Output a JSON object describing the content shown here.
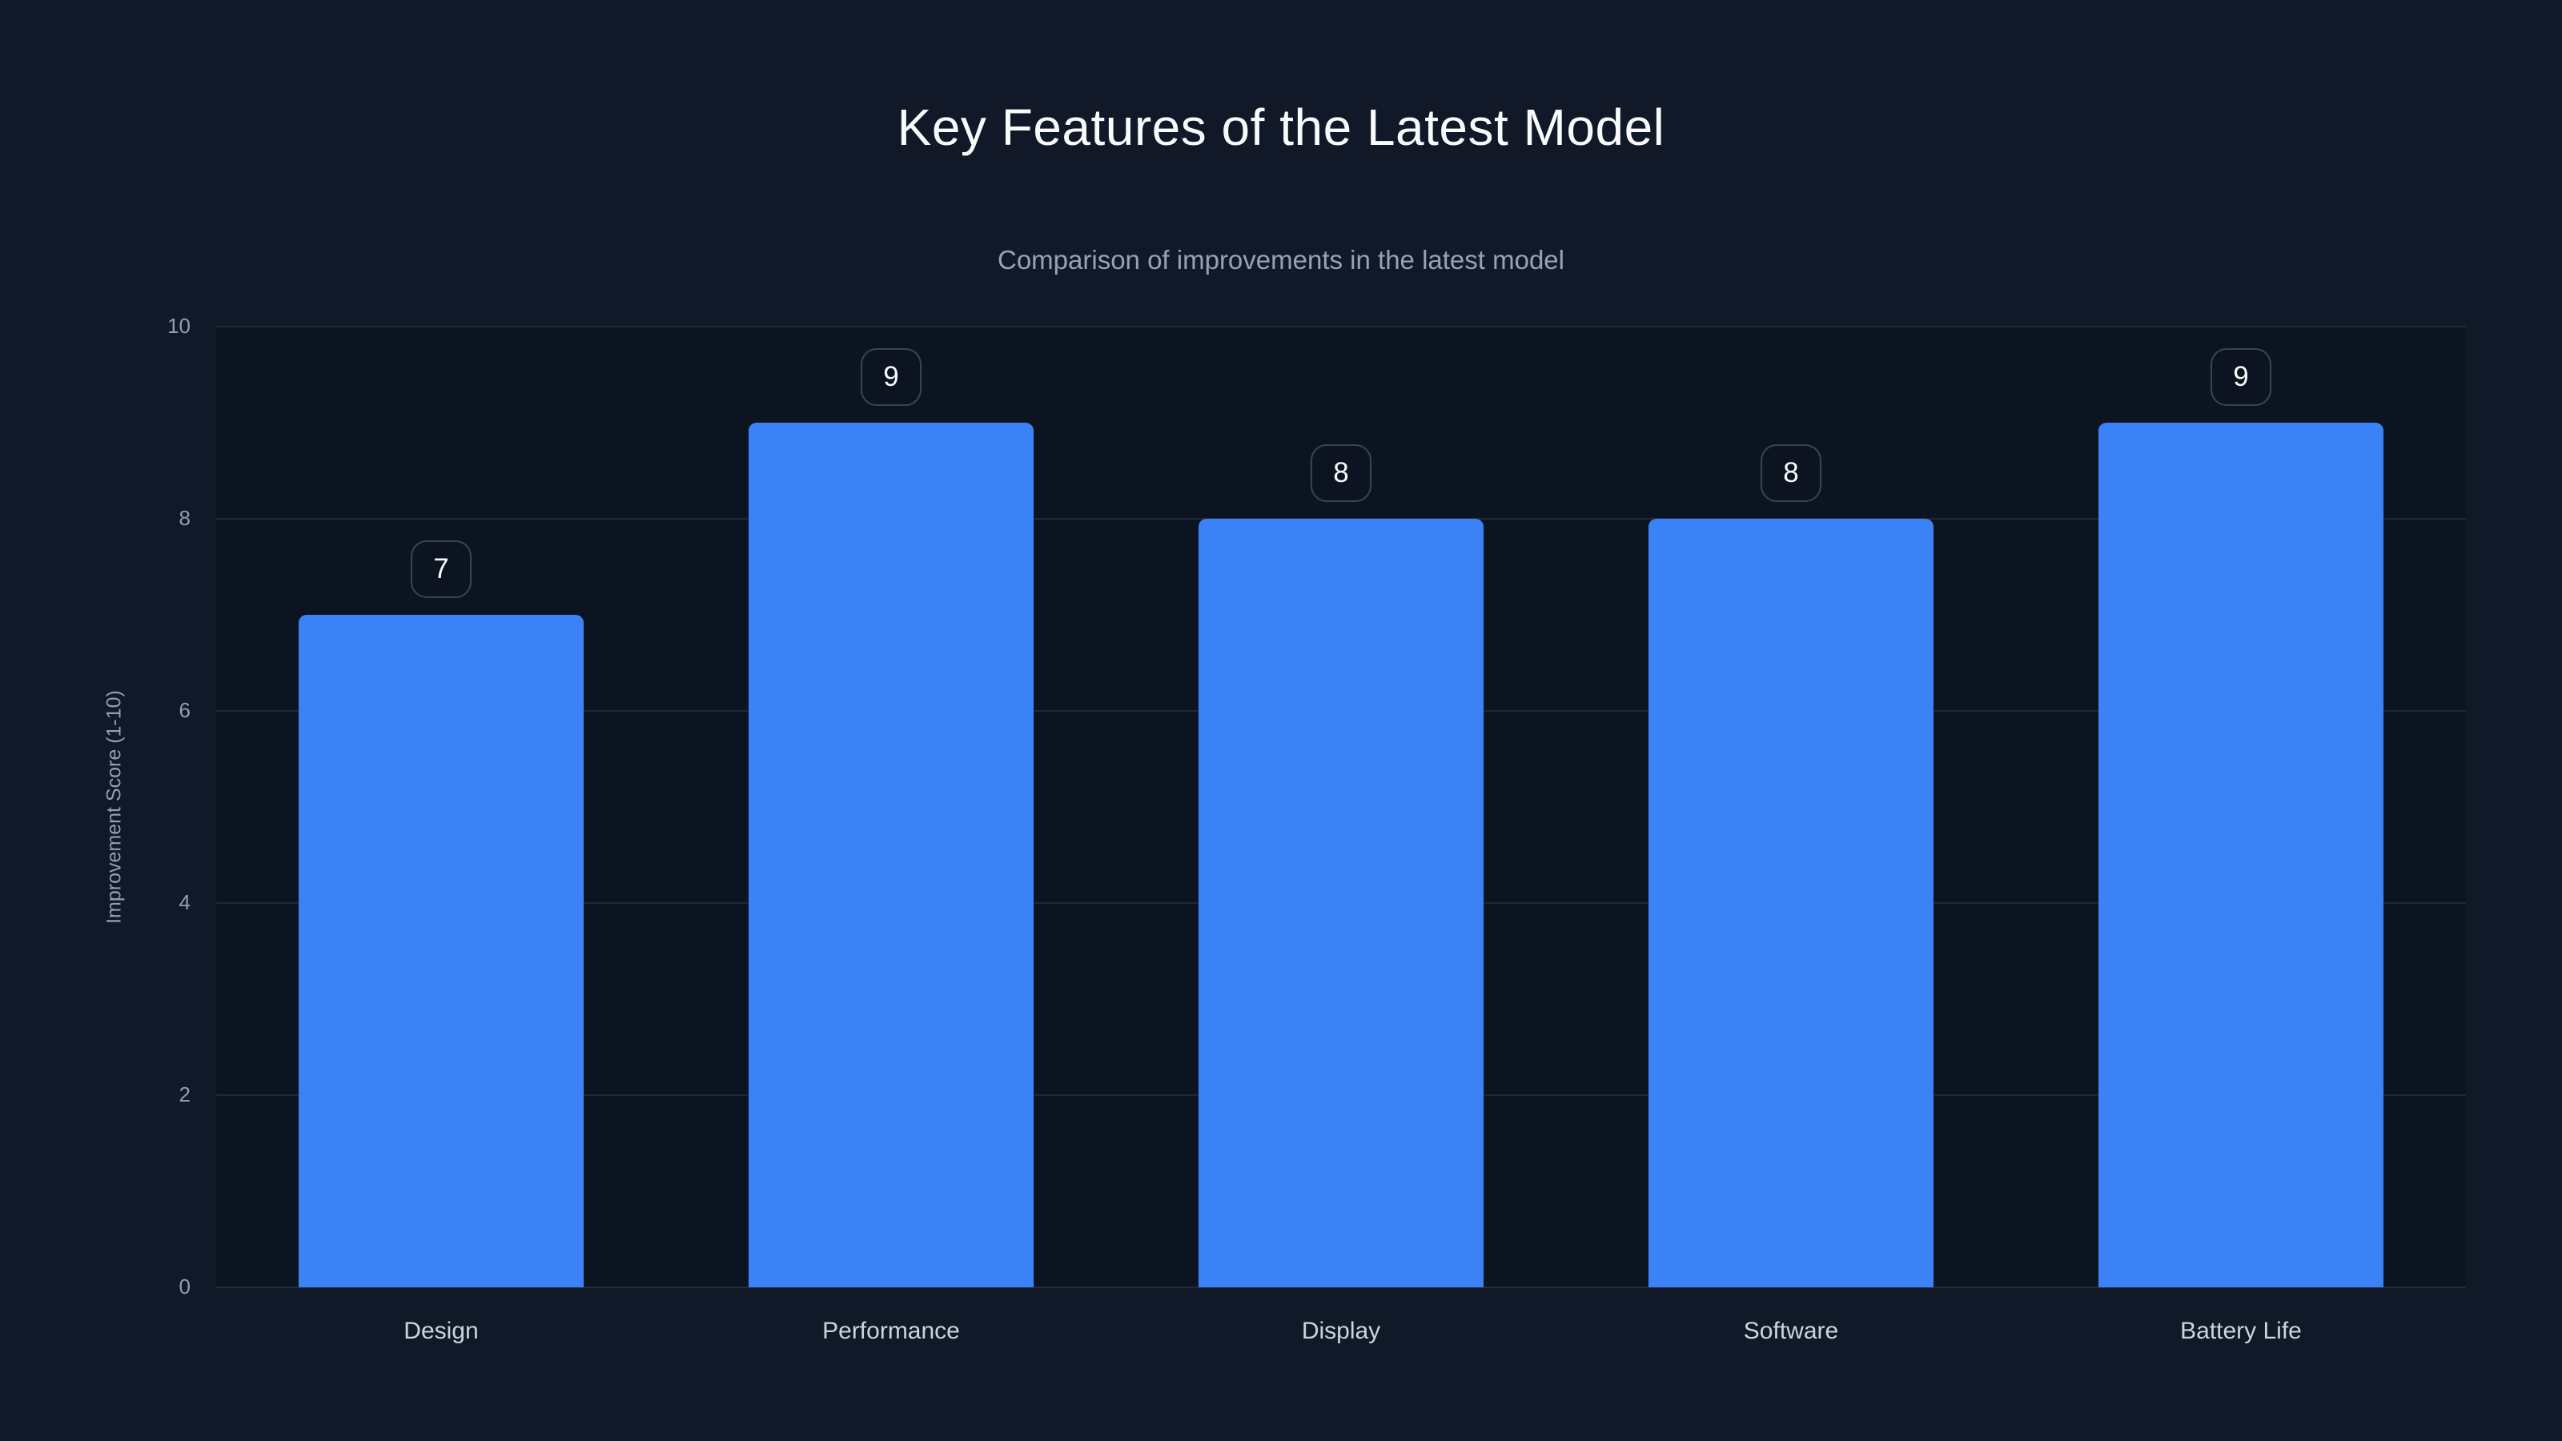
{
  "header": {
    "title": "Key Features of the Latest Model",
    "subtitle": "Comparison of improvements in the latest model"
  },
  "chart_data": {
    "type": "bar",
    "title": "Key Features of the Latest Model",
    "subtitle": "Comparison of improvements in the latest model",
    "categories": [
      "Design",
      "Performance",
      "Display",
      "Software",
      "Battery Life"
    ],
    "values": [
      7,
      9,
      8,
      8,
      9
    ],
    "value_labels": [
      "7",
      "9",
      "8",
      "8",
      "9"
    ],
    "xlabel": "",
    "ylabel": "Improvement Score (1-10)",
    "ylim": [
      0,
      10
    ],
    "yticks": [
      0,
      2,
      4,
      6,
      8,
      10
    ],
    "grid": "horizontal",
    "legend": "none",
    "colors": {
      "bar": "#3b82f6",
      "background": "#111827",
      "plot_background": "#0d1421",
      "gridline": "rgba(148,163,184,0.14)",
      "title_text": "#f8fafc",
      "subtitle_text": "#94a3b8",
      "y_tick_text": "#8fa0b5",
      "x_tick_text": "#cbd5e1",
      "badge_border": "rgba(100,116,139,0.5)",
      "badge_text": "#f8fafc"
    }
  }
}
